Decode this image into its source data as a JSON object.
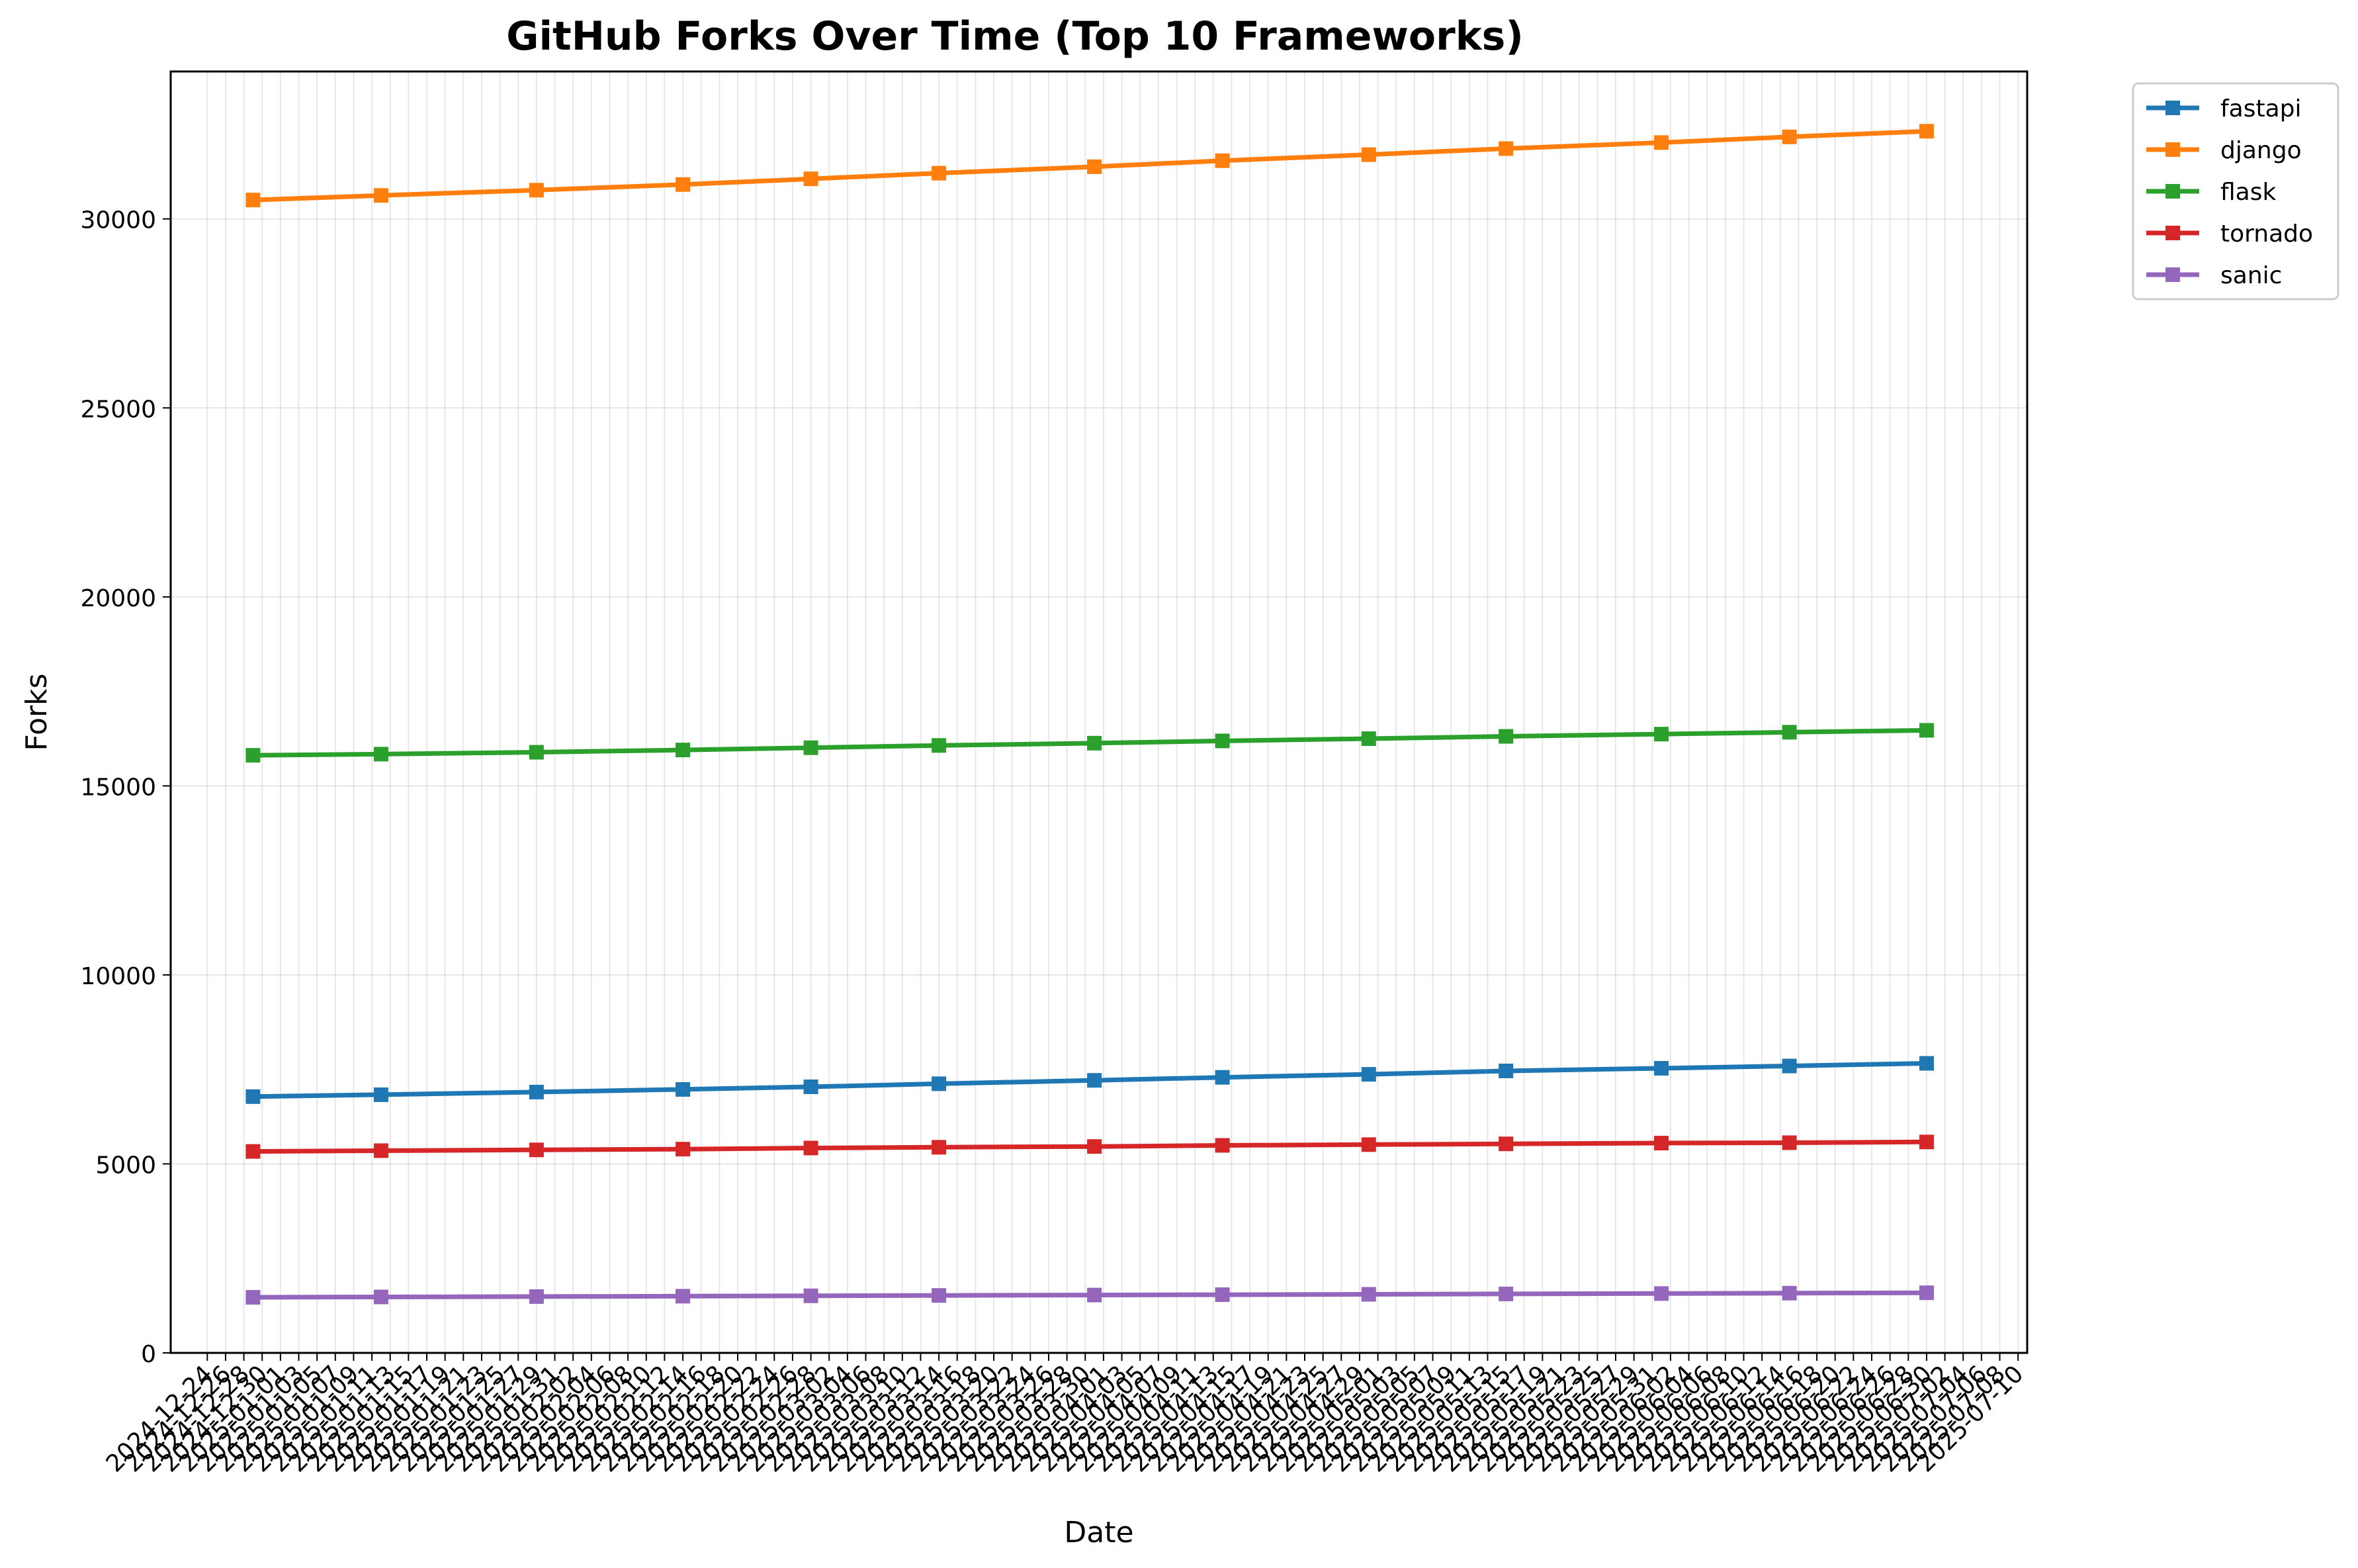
{
  "chart_data": {
    "type": "line",
    "title": "GitHub Forks Over Time (Top 10 Frameworks)",
    "xlabel": "Date",
    "ylabel": "Forks",
    "ylim": [
      0,
      33900
    ],
    "xlim": [
      "2024-12-20",
      "2025-07-11"
    ],
    "yticks": [
      0,
      5000,
      10000,
      15000,
      20000,
      25000,
      30000
    ],
    "xticks": [
      "2024-12-24",
      "2024-12-26",
      "2024-12-28",
      "2024-12-30",
      "2025-01-01",
      "2025-01-03",
      "2025-01-05",
      "2025-01-07",
      "2025-01-09",
      "2025-01-11",
      "2025-01-13",
      "2025-01-15",
      "2025-01-17",
      "2025-01-19",
      "2025-01-21",
      "2025-01-23",
      "2025-01-25",
      "2025-01-27",
      "2025-01-29",
      "2025-01-31",
      "2025-02-02",
      "2025-02-04",
      "2025-02-06",
      "2025-02-08",
      "2025-02-10",
      "2025-02-12",
      "2025-02-14",
      "2025-02-16",
      "2025-02-18",
      "2025-02-20",
      "2025-02-22",
      "2025-02-24",
      "2025-02-26",
      "2025-02-28",
      "2025-03-02",
      "2025-03-04",
      "2025-03-06",
      "2025-03-08",
      "2025-03-10",
      "2025-03-12",
      "2025-03-14",
      "2025-03-16",
      "2025-03-18",
      "2025-03-20",
      "2025-03-22",
      "2025-03-24",
      "2025-03-26",
      "2025-03-28",
      "2025-03-30",
      "2025-04-01",
      "2025-04-03",
      "2025-04-05",
      "2025-04-07",
      "2025-04-09",
      "2025-04-11",
      "2025-04-13",
      "2025-04-15",
      "2025-04-17",
      "2025-04-19",
      "2025-04-21",
      "2025-04-23",
      "2025-04-25",
      "2025-04-27",
      "2025-04-29",
      "2025-05-01",
      "2025-05-03",
      "2025-05-05",
      "2025-05-07",
      "2025-05-09",
      "2025-05-11",
      "2025-05-13",
      "2025-05-15",
      "2025-05-17",
      "2025-05-19",
      "2025-05-21",
      "2025-05-23",
      "2025-05-25",
      "2025-05-27",
      "2025-05-29",
      "2025-05-31",
      "2025-06-02",
      "2025-06-04",
      "2025-06-06",
      "2025-06-08",
      "2025-06-10",
      "2025-06-12",
      "2025-06-14",
      "2025-06-16",
      "2025-06-18",
      "2025-06-20",
      "2025-06-22",
      "2025-06-24",
      "2025-06-26",
      "2025-06-28",
      "2025-06-30",
      "2025-07-02",
      "2025-07-04",
      "2025-07-06",
      "2025-07-08",
      "2025-07-10"
    ],
    "x": [
      "2024-12-29",
      "2025-01-12",
      "2025-01-29",
      "2025-02-14",
      "2025-02-28",
      "2025-03-14",
      "2025-03-31",
      "2025-04-14",
      "2025-04-30",
      "2025-05-15",
      "2025-06-01",
      "2025-06-15",
      "2025-06-30"
    ],
    "series": [
      {
        "name": "fastapi",
        "color": "#1f77b4",
        "values": [
          6780,
          6830,
          6900,
          6970,
          7040,
          7120,
          7210,
          7290,
          7370,
          7460,
          7530,
          7590,
          7660
        ]
      },
      {
        "name": "django",
        "color": "#ff7f0e",
        "values": [
          30500,
          30620,
          30760,
          30910,
          31060,
          31210,
          31380,
          31540,
          31700,
          31860,
          32020,
          32170,
          32320
        ]
      },
      {
        "name": "flask",
        "color": "#2ca02c",
        "values": [
          15810,
          15840,
          15890,
          15950,
          16010,
          16070,
          16130,
          16190,
          16250,
          16310,
          16370,
          16420,
          16470
        ]
      },
      {
        "name": "tornado",
        "color": "#d62728",
        "values": [
          5330,
          5350,
          5370,
          5390,
          5420,
          5440,
          5460,
          5490,
          5510,
          5530,
          5550,
          5560,
          5580
        ]
      },
      {
        "name": "sanic",
        "color": "#9467bd",
        "values": [
          1470,
          1480,
          1490,
          1500,
          1510,
          1520,
          1530,
          1540,
          1550,
          1560,
          1570,
          1580,
          1590
        ]
      }
    ],
    "grid": true,
    "legend_position": "outside-top-right"
  }
}
